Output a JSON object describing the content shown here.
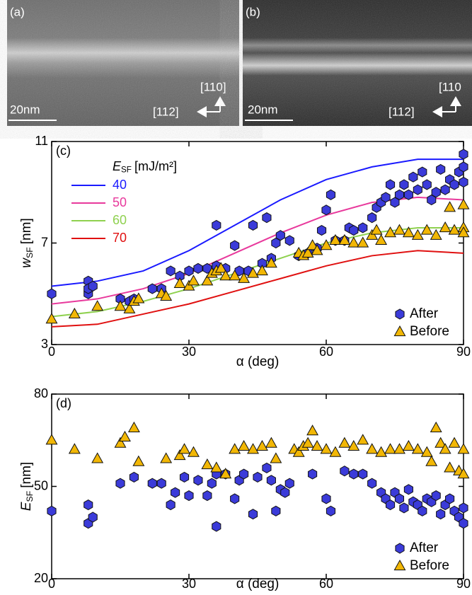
{
  "panels": [
    {
      "label": "(a)",
      "scale_bar": "20nm",
      "dir_up": "[110]",
      "dir_left": "[112]"
    },
    {
      "label": "(b)",
      "scale_bar": "20nm",
      "dir_up": "[110",
      "dir_left": "[112]"
    }
  ],
  "chart_data": [
    {
      "type": "scatter",
      "panel_label": "(c)",
      "x_label": "α (deg)",
      "y_label": {
        "symbol": "w",
        "sub": "SF",
        "unit": "[nm]"
      },
      "xlim": [
        0,
        90
      ],
      "ylim": [
        3,
        11
      ],
      "xticks": [
        0,
        30,
        60,
        90
      ],
      "yticks": [
        3,
        7,
        11
      ],
      "lines_legend_title": {
        "symbol": "E",
        "sub": "SF",
        "unit": "[mJ/m²]"
      },
      "lines": [
        {
          "name": "40",
          "color": "#1a1aff",
          "x": [
            0,
            10,
            20,
            30,
            40,
            50,
            60,
            70,
            80,
            90
          ],
          "values": [
            5.3,
            5.5,
            5.9,
            6.7,
            7.7,
            8.7,
            9.5,
            10.0,
            10.3,
            10.3
          ]
        },
        {
          "name": "50",
          "color": "#e8399c",
          "x": [
            0,
            10,
            20,
            30,
            40,
            50,
            60,
            70,
            80,
            90
          ],
          "values": [
            4.6,
            4.8,
            5.2,
            5.8,
            6.6,
            7.4,
            8.1,
            8.6,
            8.8,
            8.7
          ]
        },
        {
          "name": "60",
          "color": "#8fd14f",
          "x": [
            0,
            10,
            20,
            30,
            40,
            50,
            60,
            70,
            80,
            90
          ],
          "values": [
            4.1,
            4.3,
            4.7,
            5.2,
            5.8,
            6.4,
            7.0,
            7.4,
            7.6,
            7.6
          ]
        },
        {
          "name": "70",
          "color": "#e01010",
          "x": [
            0,
            10,
            20,
            30,
            40,
            50,
            60,
            70,
            80,
            90
          ],
          "values": [
            3.7,
            3.8,
            4.2,
            4.6,
            5.1,
            5.6,
            6.1,
            6.5,
            6.7,
            6.6
          ]
        }
      ],
      "series": [
        {
          "name": "After",
          "color": "#3b3bd9",
          "marker": "hexagon",
          "x": [
            0,
            8,
            8,
            8,
            9,
            15,
            17,
            18,
            22,
            24,
            26,
            28,
            30,
            32,
            34,
            36,
            36,
            38,
            40,
            41,
            43,
            44,
            46,
            47,
            48,
            49,
            50,
            52,
            54,
            56,
            58,
            59,
            60,
            61,
            62,
            64,
            65,
            66,
            68,
            70,
            71,
            72,
            73,
            74,
            75,
            76,
            77,
            78,
            79,
            80,
            81,
            82,
            83,
            84,
            85,
            86,
            87,
            88,
            89,
            90,
            90,
            90
          ],
          "values": [
            5.0,
            5.5,
            5.0,
            5.2,
            5.3,
            4.8,
            4.7,
            4.8,
            5.2,
            5.2,
            5.9,
            5.7,
            5.9,
            6.0,
            6.0,
            6.1,
            7.7,
            6.0,
            6.9,
            5.9,
            5.9,
            7.7,
            6.2,
            8.0,
            6.4,
            7.0,
            7.3,
            7.1,
            6.5,
            6.6,
            6.8,
            7.5,
            8.3,
            8.9,
            7.1,
            7.1,
            7.6,
            7.5,
            7.6,
            8.0,
            8.4,
            8.6,
            8.8,
            9.3,
            8.6,
            8.9,
            9.3,
            8.9,
            9.6,
            9.1,
            9.8,
            9.3,
            8.7,
            9.0,
            9.9,
            9.1,
            9.5,
            9.3,
            9.8,
            10.5,
            9.4,
            10.0
          ]
        },
        {
          "name": "Before",
          "color": "#f2b705",
          "marker": "triangle",
          "x": [
            0,
            5,
            10,
            15,
            17,
            18,
            19,
            24,
            25,
            28,
            30,
            31,
            34,
            35,
            36,
            37,
            38,
            40,
            42,
            44,
            46,
            48,
            54,
            55,
            56,
            57,
            58,
            60,
            62,
            64,
            66,
            68,
            70,
            71,
            72,
            74,
            76,
            78,
            80,
            82,
            84,
            86,
            87,
            88,
            90,
            90,
            90
          ],
          "values": [
            4.0,
            4.2,
            4.5,
            4.5,
            4.4,
            4.7,
            4.8,
            5.0,
            4.9,
            5.4,
            5.3,
            5.5,
            5.5,
            5.8,
            5.9,
            6.0,
            5.7,
            5.7,
            5.6,
            5.8,
            5.9,
            6.2,
            6.6,
            6.5,
            6.6,
            6.9,
            6.7,
            6.9,
            7.1,
            7.1,
            7.0,
            7.0,
            7.3,
            7.5,
            7.1,
            7.4,
            7.5,
            7.4,
            7.3,
            7.5,
            7.3,
            7.6,
            8.4,
            7.5,
            8.5,
            7.6,
            7.4
          ]
        }
      ],
      "legend": "lower right"
    },
    {
      "type": "scatter",
      "panel_label": "(d)",
      "x_label": "α (deg)",
      "y_label": {
        "symbol": "E",
        "sub": "SF",
        "unit": "[nm]"
      },
      "xlim": [
        0,
        90
      ],
      "ylim": [
        20,
        80
      ],
      "xticks": [
        0,
        30,
        60,
        90
      ],
      "yticks": [
        20,
        50,
        80
      ],
      "series": [
        {
          "name": "After",
          "color": "#3b3bd9",
          "marker": "hexagon",
          "x": [
            0,
            8,
            8,
            9,
            15,
            18,
            22,
            24,
            26,
            27,
            29,
            30,
            32,
            34,
            35,
            36,
            36,
            38,
            40,
            41,
            42,
            44,
            45,
            47,
            48,
            49,
            50,
            51,
            52,
            57,
            60,
            61,
            64,
            66,
            68,
            70,
            72,
            73,
            74,
            75,
            76,
            77,
            78,
            79,
            80,
            81,
            82,
            83,
            84,
            85,
            86,
            87,
            88,
            89,
            90,
            90
          ],
          "values": [
            42,
            44,
            38,
            40,
            51,
            53,
            51,
            51,
            44,
            48,
            53,
            47,
            52,
            47,
            51,
            54,
            37,
            54,
            46,
            52,
            54,
            41,
            53,
            56,
            52,
            42,
            49,
            48,
            51,
            54,
            46,
            42,
            55,
            54,
            54,
            51,
            48,
            46,
            44,
            48,
            46,
            43,
            49,
            45,
            44,
            42,
            46,
            45,
            47,
            41,
            44,
            46,
            42,
            40,
            43,
            38
          ]
        },
        {
          "name": "Before",
          "color": "#f2b705",
          "marker": "triangle",
          "x": [
            0,
            5,
            10,
            15,
            16,
            18,
            19,
            25,
            28,
            29,
            31,
            34,
            36,
            38,
            40,
            42,
            44,
            46,
            48,
            49,
            53,
            54,
            55,
            56,
            57,
            58,
            60,
            62,
            64,
            66,
            68,
            70,
            72,
            74,
            76,
            78,
            80,
            82,
            83,
            84,
            85,
            86,
            87,
            88,
            89,
            90,
            90
          ],
          "values": [
            65,
            62,
            59,
            64,
            66,
            69,
            58,
            59,
            60,
            62,
            61,
            57,
            56,
            54,
            62,
            63,
            62,
            63,
            64,
            59,
            62,
            61,
            63,
            64,
            68,
            63,
            62,
            61,
            64,
            63,
            65,
            62,
            61,
            62,
            62,
            63,
            62,
            61,
            58,
            69,
            64,
            62,
            56,
            64,
            55,
            62,
            54
          ]
        }
      ],
      "legend": "lower right"
    }
  ]
}
